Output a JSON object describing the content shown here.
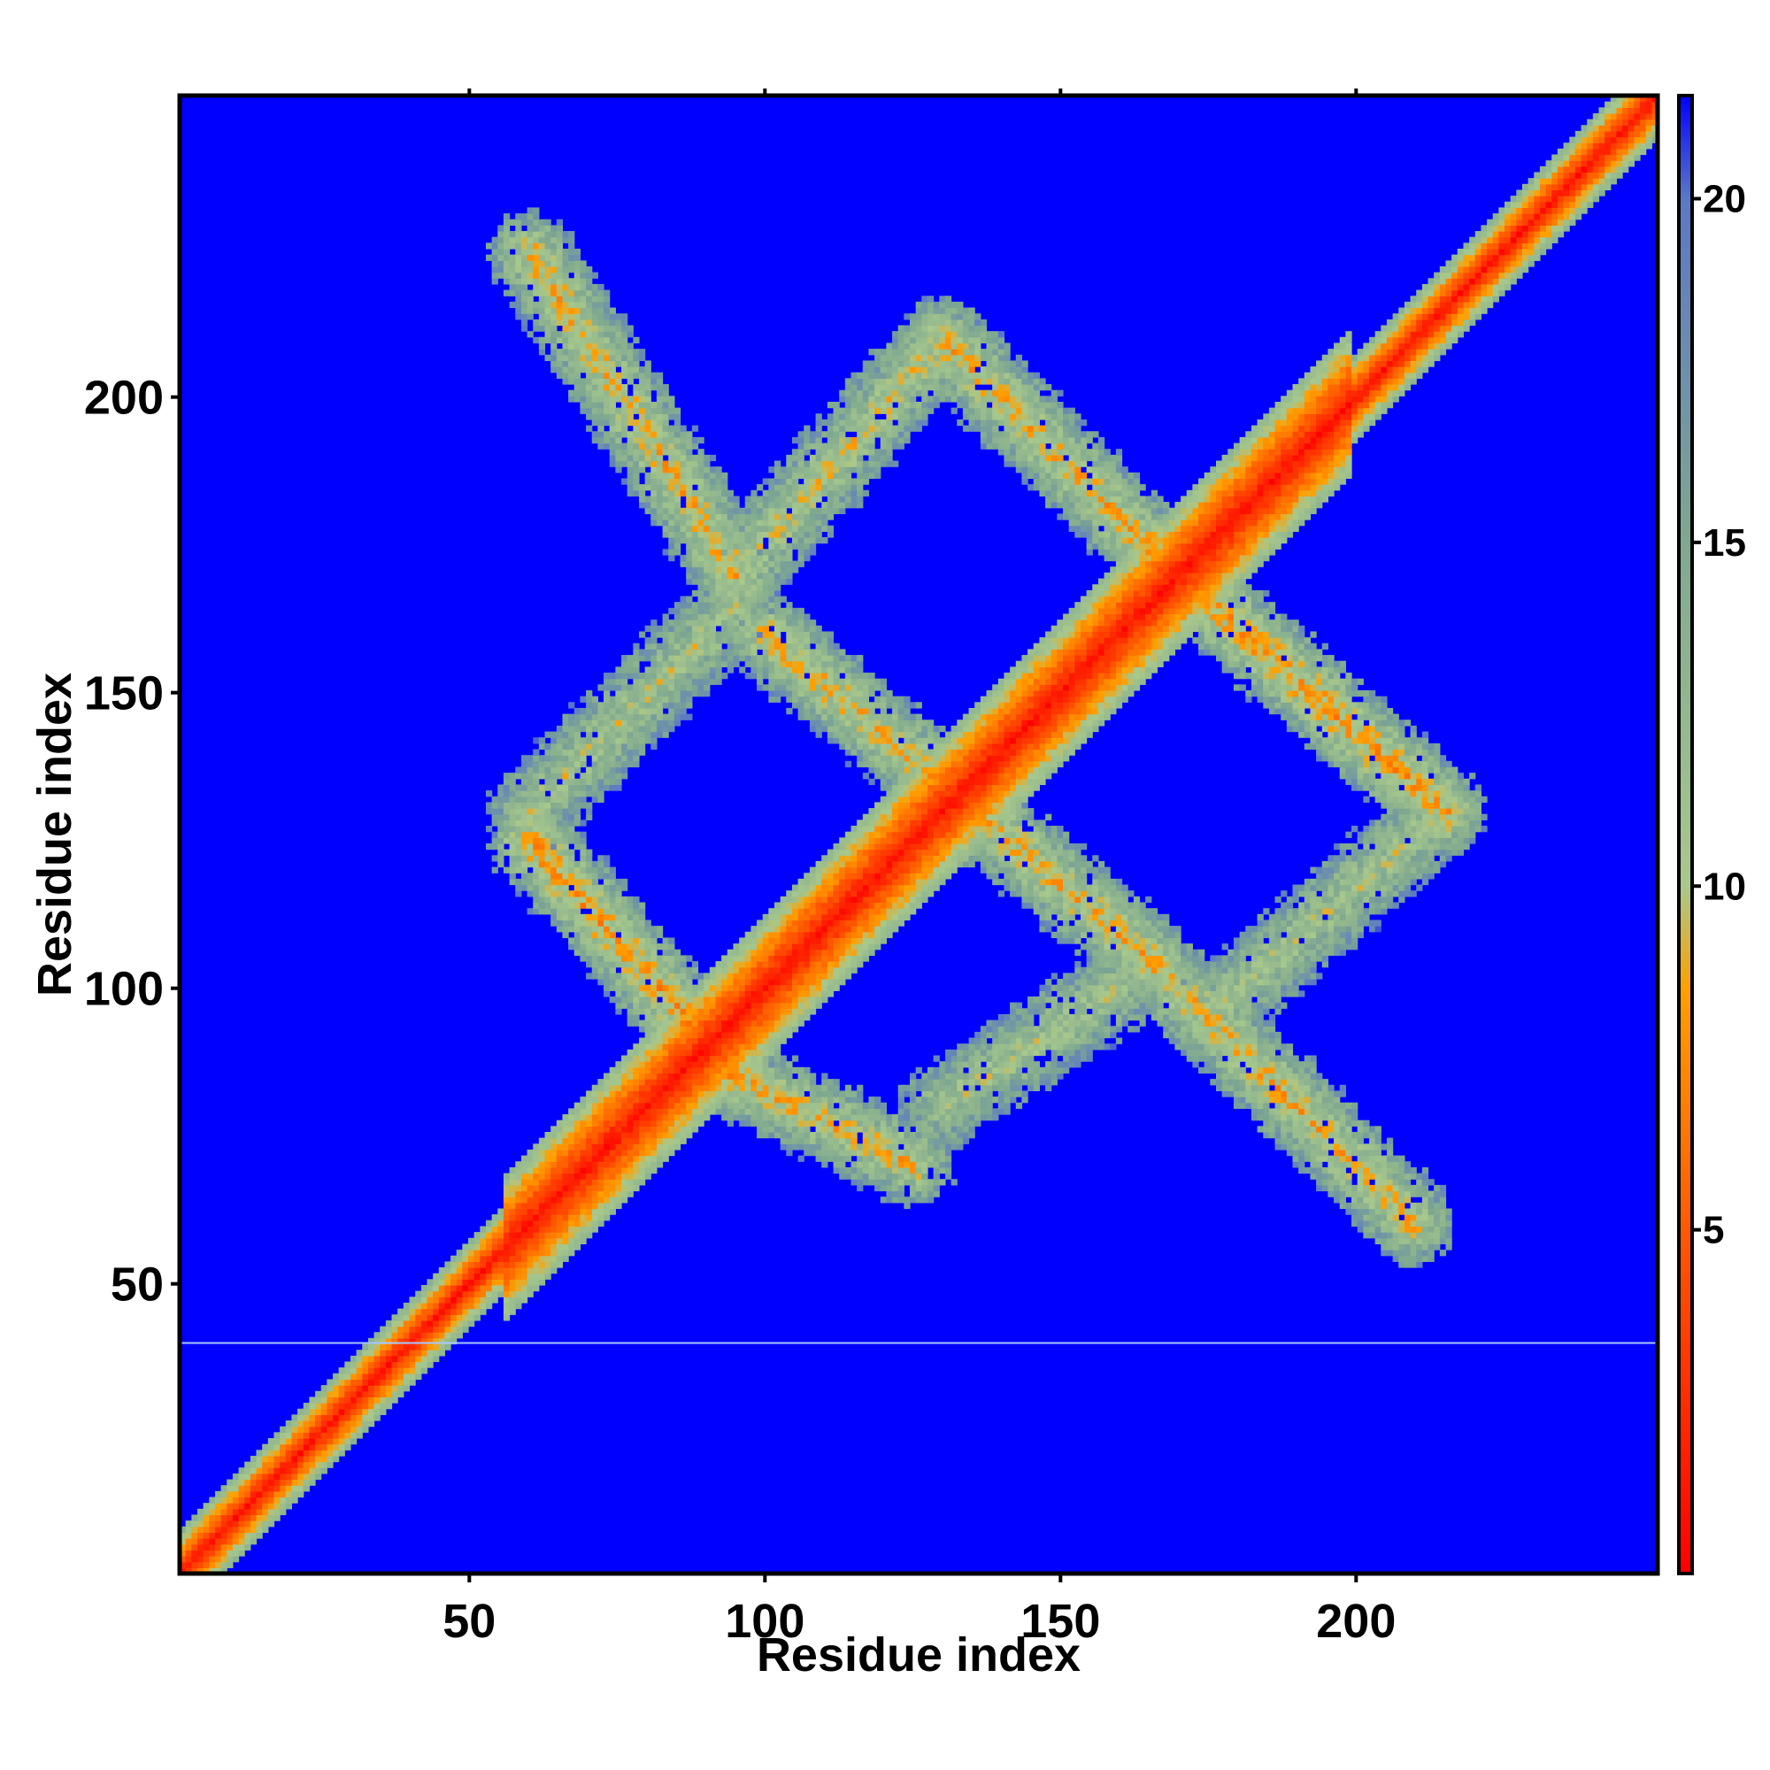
{
  "chart_data": {
    "type": "heatmap",
    "title": "",
    "xlabel": "Residue index",
    "ylabel": "Residue index",
    "xlim": [
      1,
      251
    ],
    "ylim": [
      1,
      251
    ],
    "x_ticks": [
      "50",
      "100",
      "150",
      "200"
    ],
    "y_ticks": [
      "50",
      "100",
      "150",
      "200"
    ],
    "colorbar": {
      "range": [
        0,
        21.5
      ],
      "ticks": [
        "5",
        "10",
        "15",
        "20"
      ],
      "stops": [
        {
          "value": 0,
          "color": "#ff0000"
        },
        {
          "value": 5,
          "color": "#ff5a00"
        },
        {
          "value": 8.5,
          "color": "#ffa000"
        },
        {
          "value": 10,
          "color": "#a8c88c"
        },
        {
          "value": 15,
          "color": "#7fa890"
        },
        {
          "value": 20,
          "color": "#5a78c8"
        },
        {
          "value": 21.5,
          "color": "#0000ff"
        }
      ]
    },
    "background_value": 21.5,
    "background_color": "#0000ff",
    "description_bands": {
      "main_diagonal": {
        "from": [
          1,
          1
        ],
        "to": [
          251,
          251
        ],
        "core_value": 3
      },
      "antidiagonal_contacts": [
        {
          "from": [
            60,
            225
          ],
          "to": [
            95,
            170
          ],
          "core_value": 9
        },
        {
          "from": [
            95,
            170
          ],
          "to": [
            130,
            210
          ],
          "core_value": 10
        },
        {
          "from": [
            130,
            210
          ],
          "to": [
            165,
            175
          ],
          "core_value": 9
        },
        {
          "from": [
            165,
            175
          ],
          "to": [
            215,
            130
          ],
          "core_value": 8
        },
        {
          "from": [
            60,
            125
          ],
          "to": [
            95,
            85
          ],
          "core_value": 8
        },
        {
          "from": [
            95,
            85
          ],
          "to": [
            125,
            70
          ],
          "core_value": 9
        },
        {
          "from": [
            100,
            160
          ],
          "to": [
            165,
            105
          ],
          "core_value": 9
        },
        {
          "from": [
            165,
            105
          ],
          "to": [
            210,
            60
          ],
          "core_value": 9
        },
        {
          "from": [
            60,
            130
          ],
          "to": [
            95,
            165
          ],
          "core_value": 11
        },
        {
          "from": [
            130,
            80
          ],
          "to": [
            160,
            100
          ],
          "core_value": 11
        },
        {
          "from": [
            175,
            95
          ],
          "to": [
            215,
            130
          ],
          "core_value": 11
        }
      ],
      "horizontal_line": {
        "y": 40,
        "color": "#a8c8ff"
      }
    }
  }
}
